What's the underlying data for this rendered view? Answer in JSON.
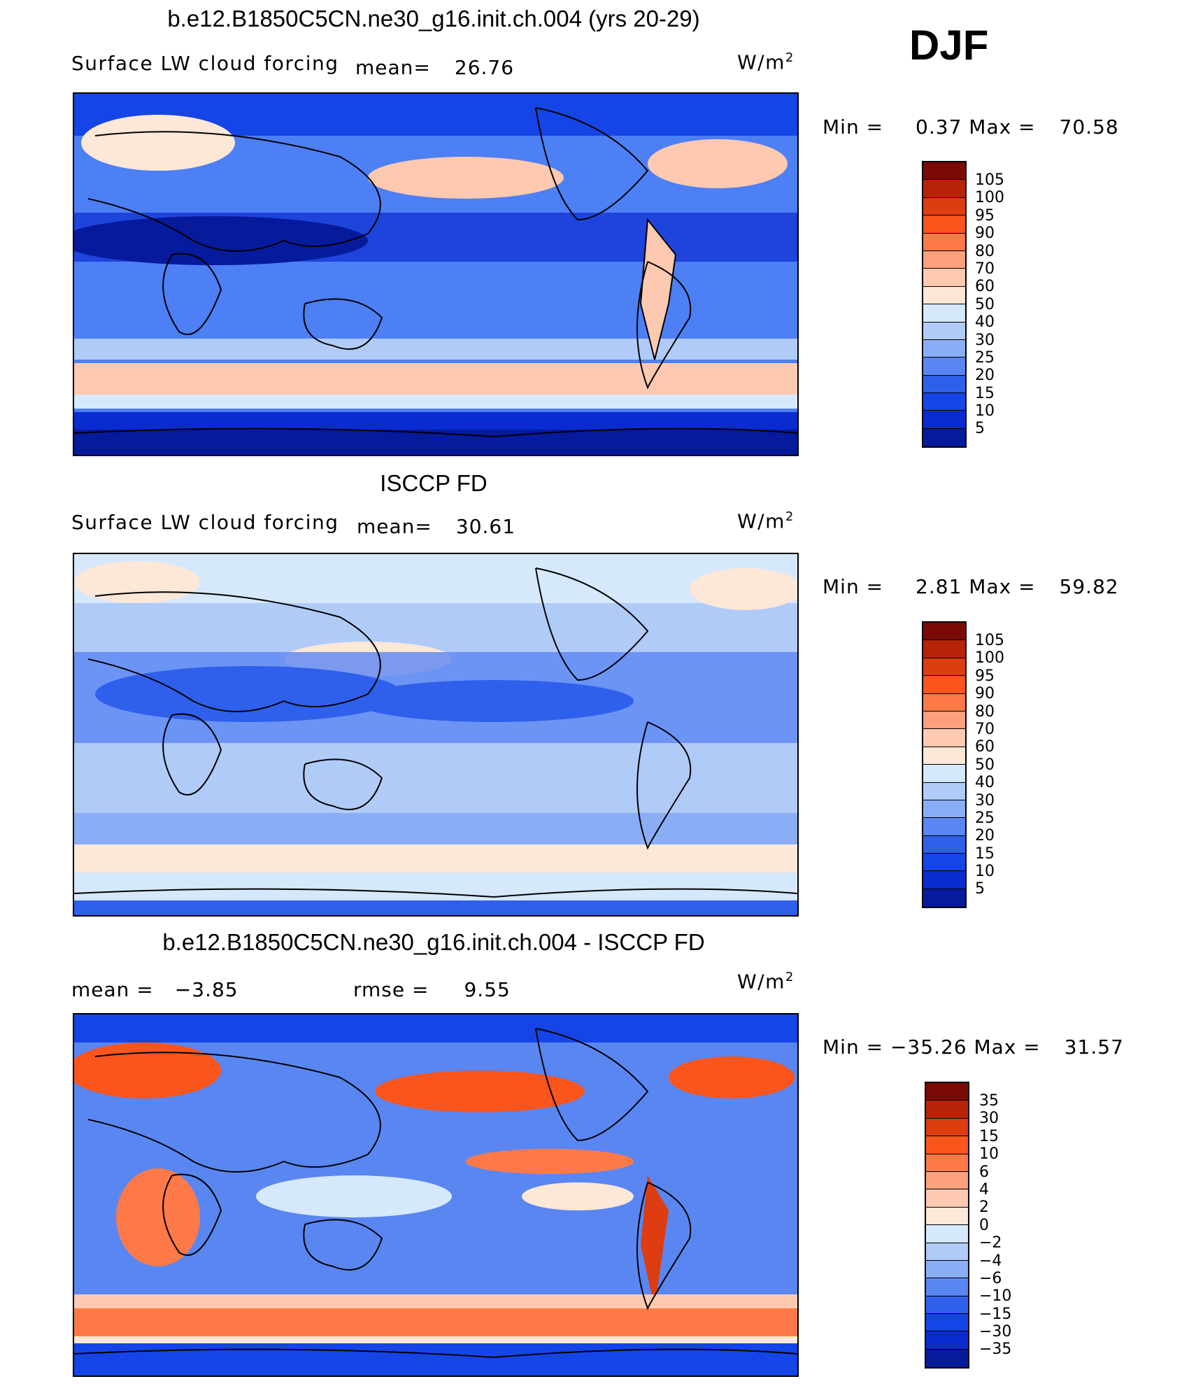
{
  "season": "DJF",
  "unit": "W/m",
  "unit_sup": "2",
  "panels": [
    {
      "title": "b.e12.B1850C5CN.ne30_g16.init.ch.004 (yrs 20-29)",
      "left_label": "Surface LW cloud forcing",
      "mean_label": "mean=",
      "mean_value": "26.76",
      "min_label": "Min =",
      "min_value": "0.37",
      "max_label": "Max =",
      "max_value": "70.58",
      "ticks": [
        "105",
        "100",
        "95",
        "90",
        "80",
        "70",
        "60",
        "50",
        "40",
        "30",
        "25",
        "20",
        "15",
        "10",
        "5"
      ]
    },
    {
      "title": "ISCCP FD",
      "left_label": "Surface LW cloud forcing",
      "mean_label": "mean=",
      "mean_value": "30.61",
      "min_label": "Min =",
      "min_value": "2.81",
      "max_label": "Max =",
      "max_value": "59.82",
      "ticks": [
        "105",
        "100",
        "95",
        "90",
        "80",
        "70",
        "60",
        "50",
        "40",
        "30",
        "25",
        "20",
        "15",
        "10",
        "5"
      ]
    },
    {
      "title": "b.e12.B1850C5CN.ne30_g16.init.ch.004 - ISCCP FD",
      "mean_label": "mean =",
      "mean_value": "−3.85",
      "rmse_label": "rmse =",
      "rmse_value": "9.55",
      "min_label": "Min =",
      "min_value": "−35.26",
      "max_label": "Max =",
      "max_value": "31.57",
      "ticks": [
        "35",
        "30",
        "15",
        "10",
        "6",
        "4",
        "2",
        "0",
        "−2",
        "−4",
        "−6",
        "−10",
        "−15",
        "−30",
        "−35"
      ]
    }
  ],
  "colors": {
    "colorbar": [
      "#7a0a05",
      "#b52406",
      "#dd3d10",
      "#f9551c",
      "#fd7a48",
      "#fca07d",
      "#fdc9b1",
      "#fde7d7",
      "#d6e8fb",
      "#b0cbf8",
      "#8aaef6",
      "#5a86f2",
      "#2f60ec",
      "#1545e6",
      "#0a2bd0",
      "#061a9c"
    ]
  }
}
